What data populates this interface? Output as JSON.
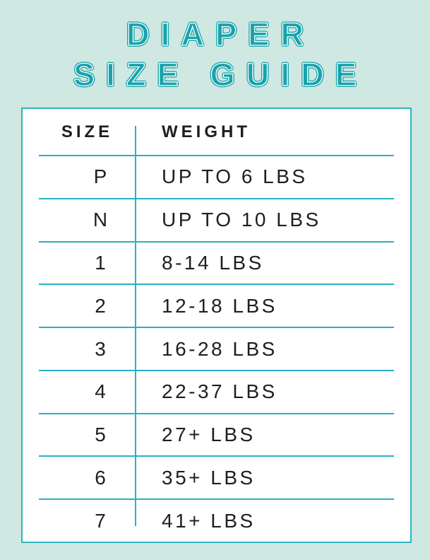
{
  "title": {
    "line1": "DIAPER",
    "line2": "SIZE GUIDE"
  },
  "colors": {
    "background_mint": "#cfe8e2",
    "title_teal": "#18a3ab",
    "grid_cyan": "#26b1c6",
    "card_border": "#2eb3bc",
    "card_background": "#ffffff",
    "text": "#1f1f1f"
  },
  "chart_data": {
    "type": "table",
    "title": "DIAPER SIZE GUIDE",
    "columns": [
      "SIZE",
      "WEIGHT"
    ],
    "rows": [
      [
        "P",
        "UP TO 6 LBS"
      ],
      [
        "N",
        "UP TO 10 LBS"
      ],
      [
        "1",
        "8-14 LBS"
      ],
      [
        "2",
        "12-18 LBS"
      ],
      [
        "3",
        "16-28 LBS"
      ],
      [
        "4",
        "22-37 LBS"
      ],
      [
        "5",
        "27+ LBS"
      ],
      [
        "6",
        "35+ LBS"
      ],
      [
        "7",
        "41+ LBS"
      ]
    ],
    "layout": {
      "header_divider": true,
      "row_dividers": true,
      "column_divider": true
    }
  }
}
